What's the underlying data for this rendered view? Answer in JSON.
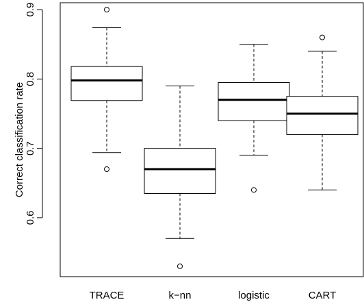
{
  "chart_data": {
    "type": "boxplot",
    "title": "",
    "xlabel": "",
    "ylabel": "Correct classification rate",
    "ylim": [
      0.515,
      0.91
    ],
    "y_ticks": [
      0.6,
      0.7,
      0.8,
      0.9
    ],
    "y_tick_labels": [
      "0.6",
      "0.7",
      "0.8",
      "0.9"
    ],
    "grid": false,
    "legend": "none",
    "categories": [
      "TRACE",
      "k−nn",
      "logistic",
      "CART"
    ],
    "boxes": [
      {
        "category": "TRACE",
        "whisker_low": 0.694,
        "q1": 0.769,
        "median": 0.798,
        "q3": 0.818,
        "whisker_high": 0.874,
        "outliers": [
          0.9,
          0.67
        ]
      },
      {
        "category": "k−nn",
        "whisker_low": 0.57,
        "q1": 0.635,
        "median": 0.67,
        "q3": 0.7,
        "whisker_high": 0.79,
        "outliers": [
          0.53
        ]
      },
      {
        "category": "logistic",
        "whisker_low": 0.69,
        "q1": 0.74,
        "median": 0.77,
        "q3": 0.795,
        "whisker_high": 0.85,
        "outliers": [
          0.64
        ]
      },
      {
        "category": "CART",
        "whisker_low": 0.64,
        "q1": 0.72,
        "median": 0.75,
        "q3": 0.775,
        "whisker_high": 0.84,
        "outliers": [
          0.86
        ]
      }
    ],
    "colors": {
      "box_fill": "#ffffff",
      "line": "#000000"
    }
  }
}
